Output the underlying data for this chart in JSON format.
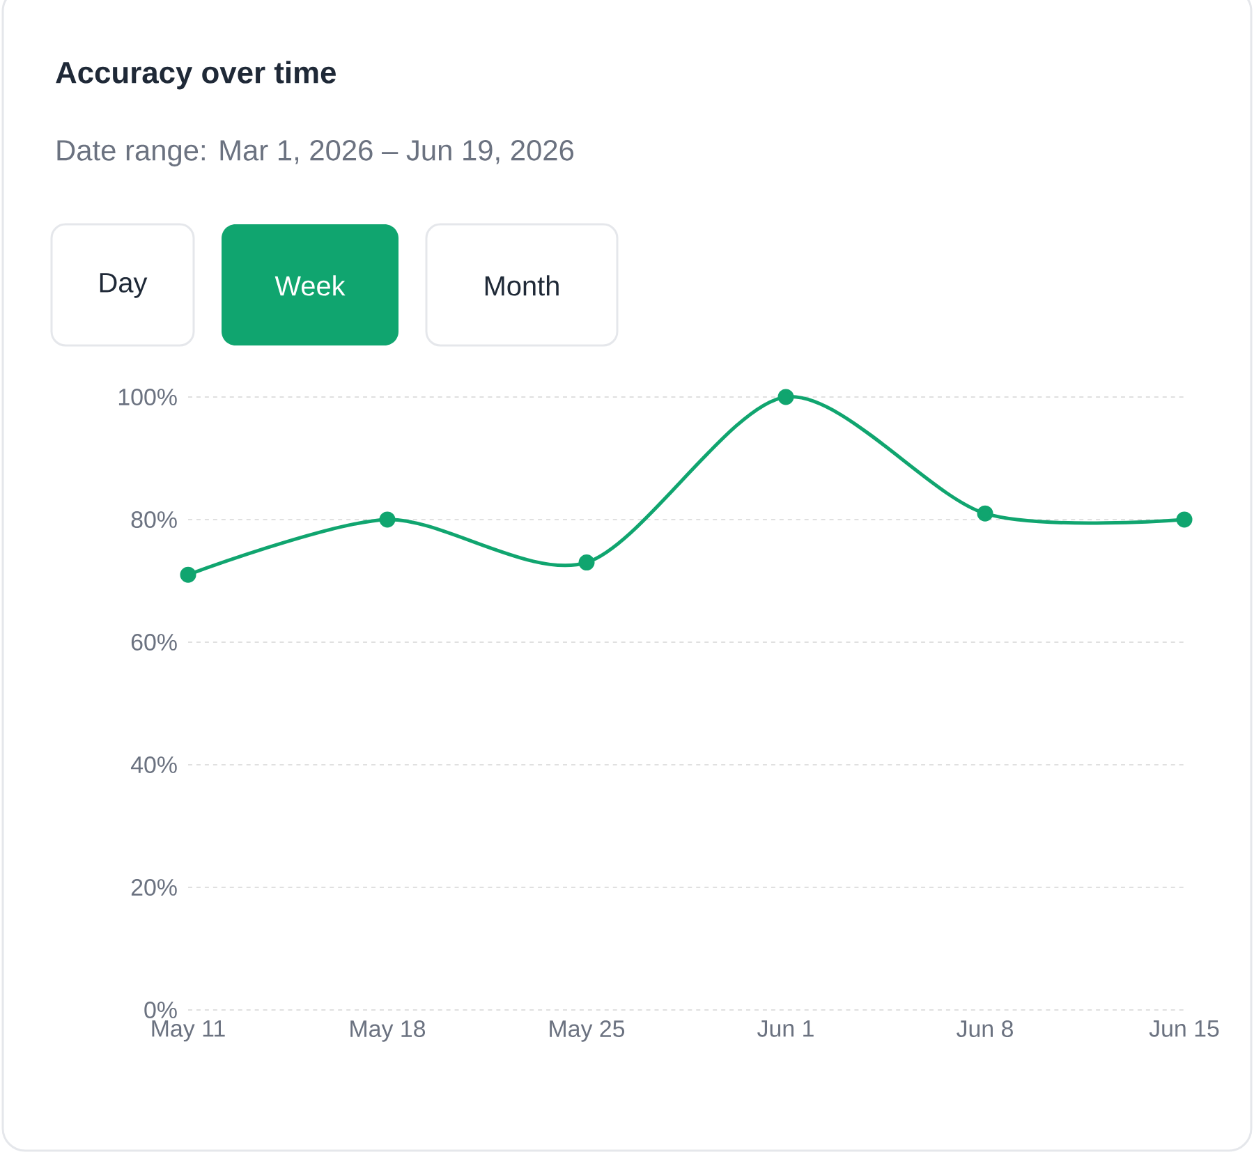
{
  "chart_data": {
    "type": "line",
    "title": "Accuracy over time",
    "subtitle": "Date range: Mar 1, 2026 – Jun 19, 2026",
    "annotations": [
      "Day",
      "Week",
      "Month"
    ],
    "categories": [
      "May 11",
      "May 18",
      "May 25",
      "Jun 1",
      "Jun 8",
      "Jun 15"
    ],
    "series": [
      {
        "color": "#10a56f",
        "values": [
          71,
          80,
          73,
          100,
          81,
          80
        ]
      }
    ],
    "ylim": [
      0,
      100
    ],
    "yticks": [
      {
        "value": 0,
        "label": "0%"
      },
      {
        "value": 20,
        "label": "20%"
      },
      {
        "value": 40,
        "label": "40%"
      },
      {
        "value": 60,
        "label": "60%"
      },
      {
        "value": 80,
        "label": "80%"
      },
      {
        "value": 100,
        "label": "100%"
      }
    ],
    "grid": "y",
    "marker": "circle",
    "line_style": "solid"
  }
}
